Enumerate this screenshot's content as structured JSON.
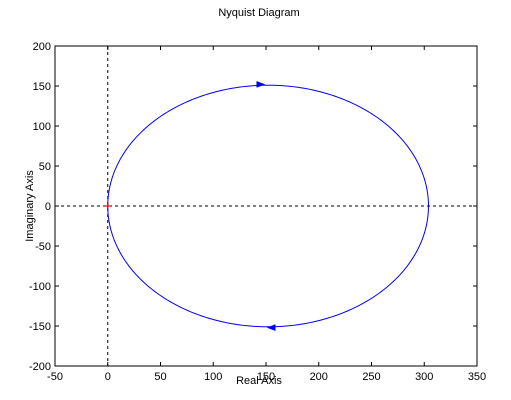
{
  "chart_data": {
    "type": "line",
    "title": "Nyquist Diagram",
    "xlabel": "Real Axis",
    "ylabel": "Imaginary Axis",
    "xlim": [
      -50,
      350
    ],
    "ylim": [
      -200,
      200
    ],
    "xticks": [
      -50,
      0,
      50,
      100,
      150,
      200,
      250,
      300,
      350
    ],
    "yticks": [
      -200,
      -150,
      -100,
      -50,
      0,
      50,
      100,
      150,
      200
    ],
    "grid": false,
    "zero_lines": true,
    "curve": {
      "center": [
        152,
        0
      ],
      "radius_x": 152,
      "radius_y": 151,
      "color": "#0000ff",
      "direction_markers": [
        {
          "x": 145,
          "y": 152,
          "direction": "right"
        },
        {
          "x": 155,
          "y": -152,
          "direction": "left"
        }
      ]
    },
    "critical_point": {
      "x": 0,
      "y": 0,
      "color": "#ff0000"
    }
  }
}
